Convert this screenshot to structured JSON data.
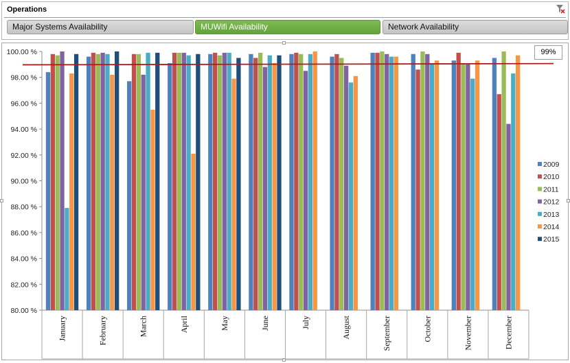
{
  "slicer": {
    "title": "Operations",
    "tiles": [
      {
        "label": "Major Systems Availability",
        "selected": false
      },
      {
        "label": "MUWifi Availability",
        "selected": true
      },
      {
        "label": "Network Availability",
        "selected": false
      }
    ]
  },
  "target_label": "99%",
  "colors": {
    "accent": "#6aaa3f",
    "series": [
      "#4f81bd",
      "#c0504d",
      "#9bbb59",
      "#8064a2",
      "#4bacc6",
      "#f79646",
      "#1f4e79"
    ],
    "target_line": "#b01c1c"
  },
  "chart_data": {
    "type": "bar",
    "categories": [
      "January",
      "February",
      "March",
      "April",
      "May",
      "June",
      "July",
      "August",
      "September",
      "October",
      "November",
      "December"
    ],
    "ylim": [
      80,
      100
    ],
    "yticks": [
      "80.00 %",
      "82.00 %",
      "84.00 %",
      "86.00 %",
      "88.00 %",
      "90.00 %",
      "92.00 %",
      "94.00 %",
      "96.00 %",
      "98.00 %",
      "100.00 %"
    ],
    "target": 99,
    "legend_position": "right",
    "grid": false,
    "series": [
      {
        "name": "2009",
        "values": [
          98.4,
          99.6,
          97.7,
          99.1,
          99.8,
          99.8,
          99.8,
          99.6,
          99.9,
          99.8,
          99.3,
          99.5
        ]
      },
      {
        "name": "2010",
        "values": [
          99.8,
          99.9,
          99.8,
          99.9,
          99.9,
          99.5,
          99.9,
          99.8,
          99.9,
          98.6,
          99.9,
          96.7
        ]
      },
      {
        "name": "2011",
        "values": [
          99.7,
          99.8,
          99.8,
          99.9,
          99.7,
          99.9,
          99.8,
          99.5,
          100.0,
          100.0,
          99.1,
          100.0
        ]
      },
      {
        "name": "2012",
        "values": [
          100.0,
          99.9,
          98.2,
          99.9,
          99.9,
          98.8,
          98.5,
          98.9,
          99.8,
          99.8,
          99.0,
          94.4
        ]
      },
      {
        "name": "2013",
        "values": [
          87.9,
          99.8,
          99.9,
          99.7,
          99.9,
          99.7,
          99.8,
          97.6,
          99.6,
          99.1,
          97.9,
          98.3
        ]
      },
      {
        "name": "2014",
        "values": [
          98.3,
          98.2,
          95.5,
          92.1,
          97.9,
          99.1,
          100.0,
          98.1,
          99.6,
          99.3,
          99.3,
          99.7
        ]
      },
      {
        "name": "2015",
        "values": [
          99.8,
          100.0,
          99.9,
          99.8,
          99.5,
          99.7,
          null,
          null,
          null,
          null,
          null,
          null
        ]
      }
    ]
  }
}
